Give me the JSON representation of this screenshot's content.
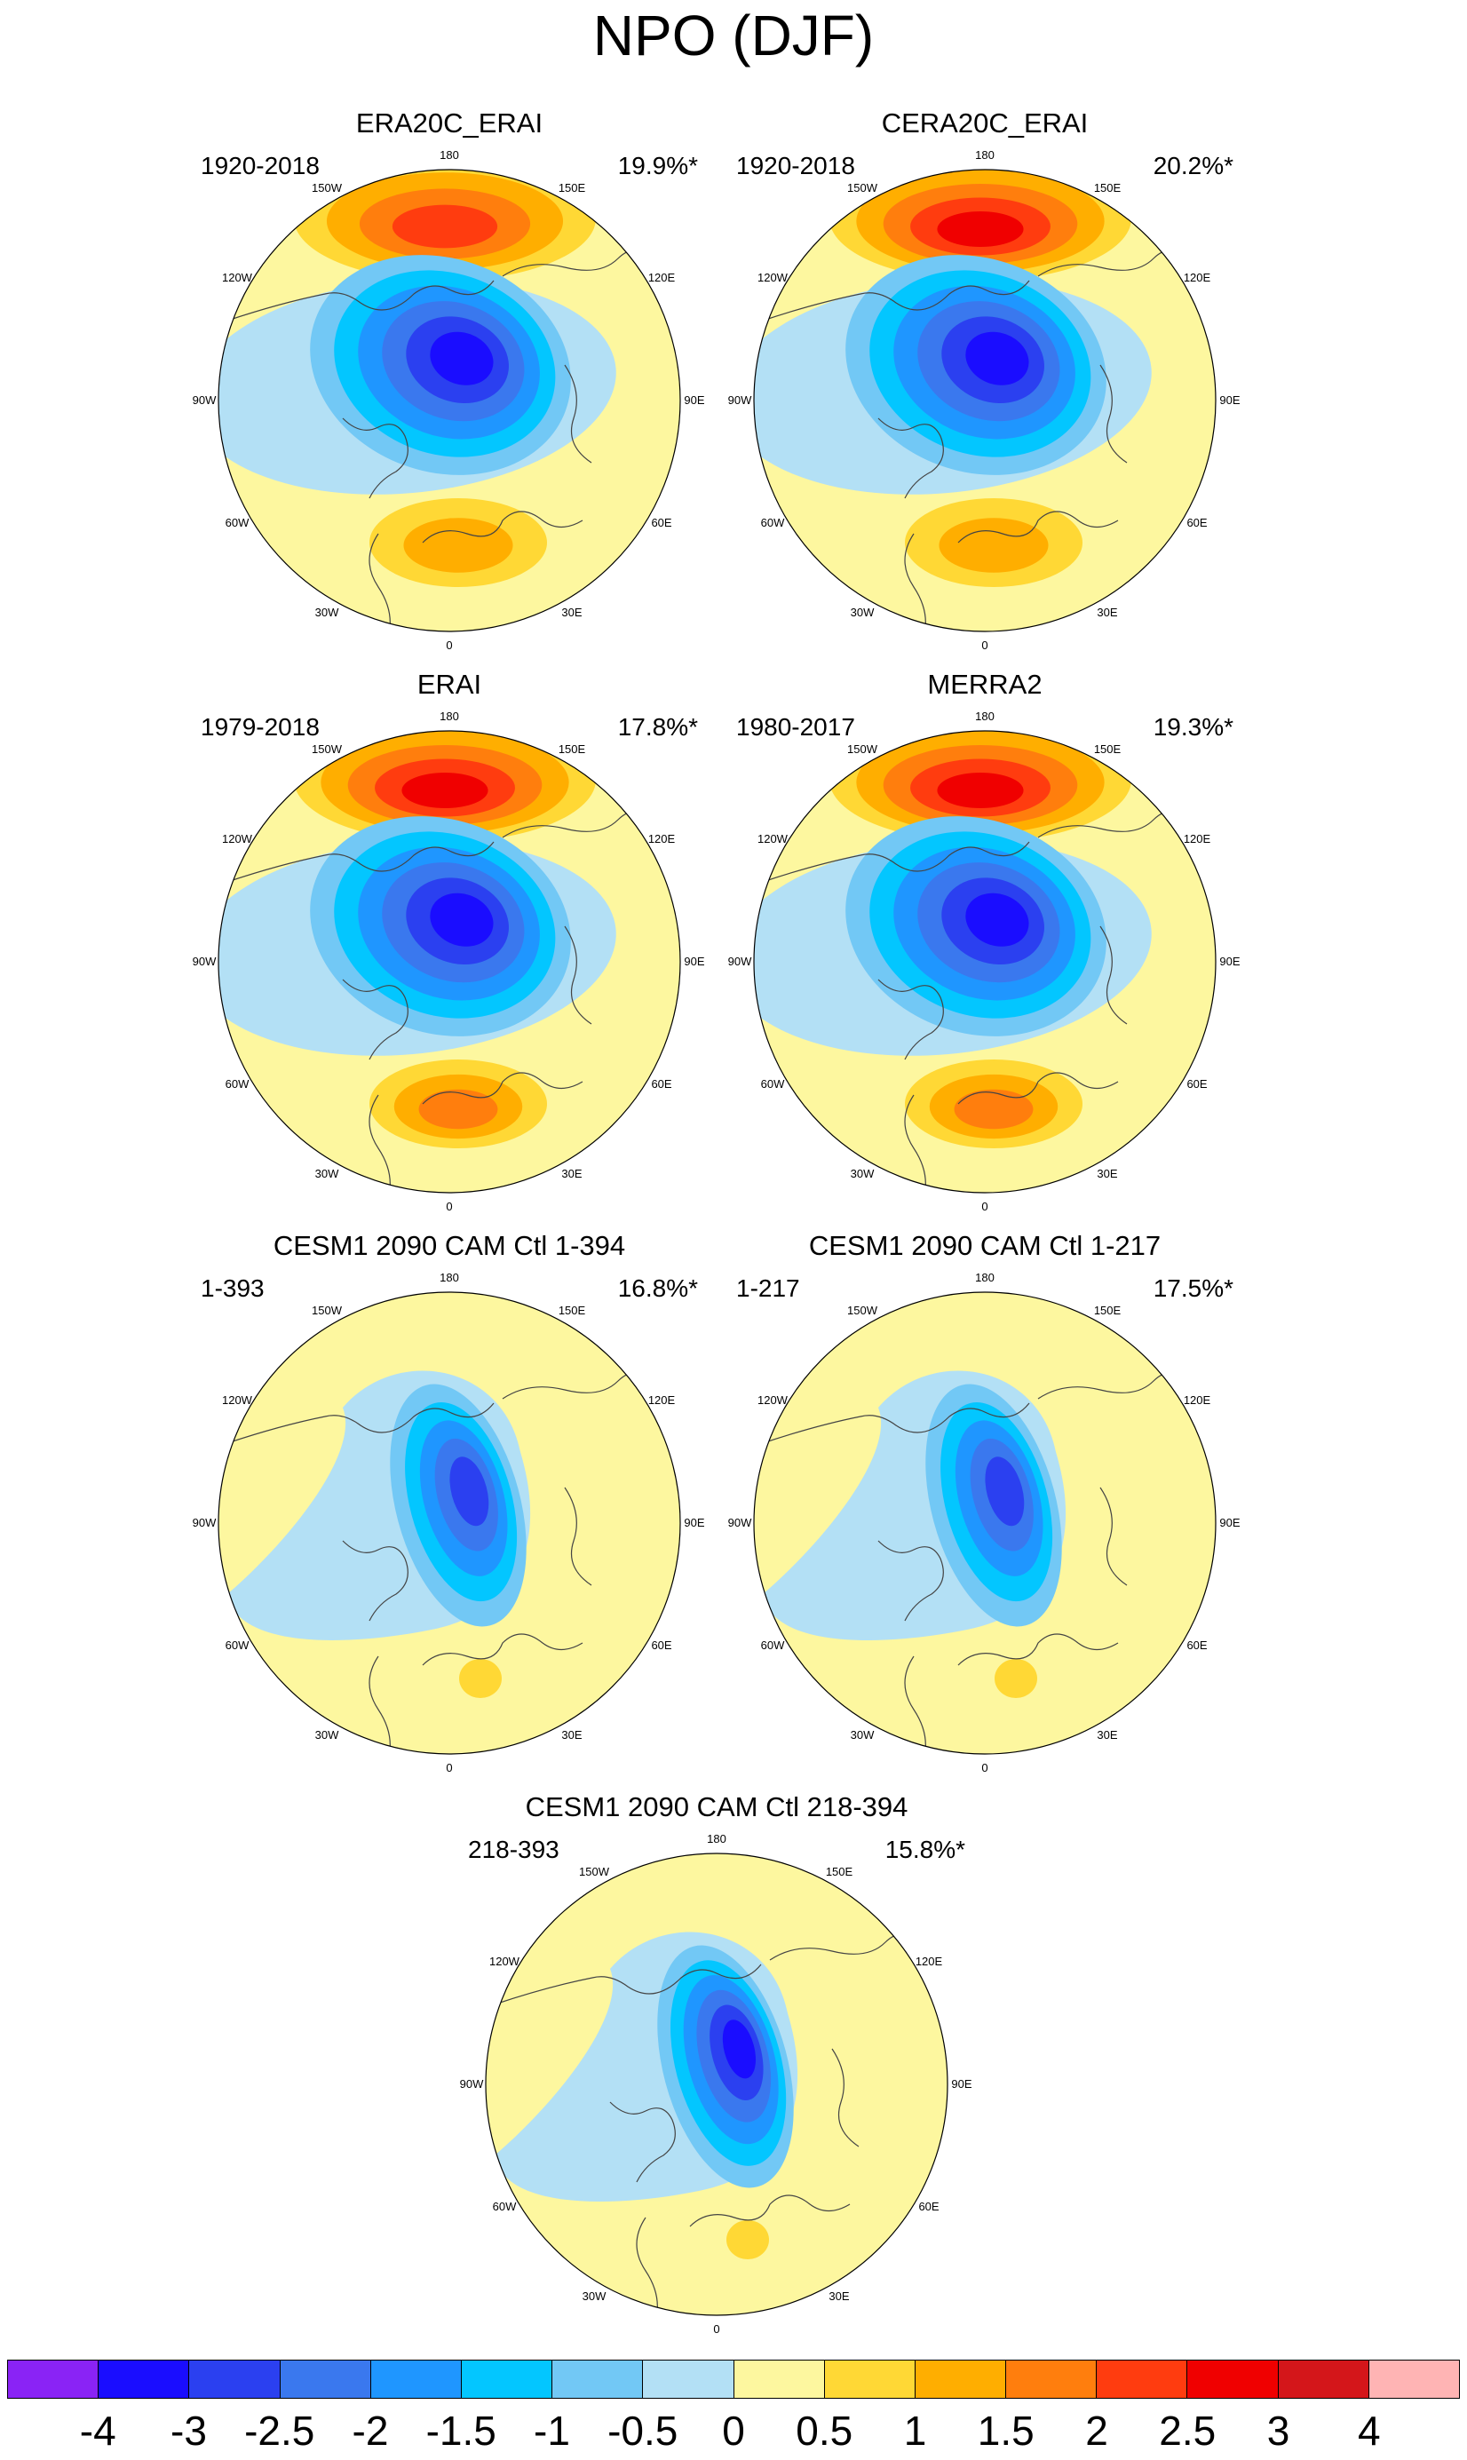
{
  "title": "NPO (DJF)",
  "panels": [
    {
      "title": "ERA20C_ERAI",
      "period": "1920-2018",
      "percent": "19.9%*",
      "style": "reanalysis",
      "pacific_peak": 2.3,
      "arctic_min": -3.2,
      "atlantic_peak": 1.4
    },
    {
      "title": "CERA20C_ERAI",
      "period": "1920-2018",
      "percent": "20.2%*",
      "style": "reanalysis",
      "pacific_peak": 2.6,
      "arctic_min": -3.1,
      "atlantic_peak": 1.3
    },
    {
      "title": "ERAI",
      "period": "1979-2018",
      "percent": "17.8%*",
      "style": "reanalysis",
      "pacific_peak": 2.7,
      "arctic_min": -3.3,
      "atlantic_peak": 1.7
    },
    {
      "title": "MERRA2",
      "period": "1980-2017",
      "percent": "19.3%*",
      "style": "reanalysis",
      "pacific_peak": 2.7,
      "arctic_min": -3.2,
      "atlantic_peak": 1.7
    },
    {
      "title": "CESM1 2090 CAM Ctl 1-394",
      "period": "1-393",
      "percent": "16.8%*",
      "style": "model",
      "pacific_peak": 0.6,
      "arctic_min": -2.9,
      "atlantic_peak": 0.7
    },
    {
      "title": "CESM1 2090 CAM Ctl 1-217",
      "period": "1-217",
      "percent": "17.5%*",
      "style": "model",
      "pacific_peak": 0.6,
      "arctic_min": -3.0,
      "atlantic_peak": 0.7
    },
    {
      "title": "CESM1 2090 CAM Ctl 218-394",
      "period": "218-393",
      "percent": "15.8%*",
      "style": "model",
      "pacific_peak": 0.6,
      "arctic_min": -3.1,
      "atlantic_peak": 0.6
    }
  ],
  "longitude_labels": [
    "180",
    "150E",
    "120E",
    "90E",
    "60E",
    "30E",
    "0",
    "30W",
    "60W",
    "90W",
    "120W",
    "150W"
  ],
  "colorbar": {
    "colors": [
      "#8a23f5",
      "#1a0dff",
      "#2b40f0",
      "#3a78ee",
      "#1f96ff",
      "#03c6ff",
      "#72c8f5",
      "#b3e0f5",
      "#fdf79f",
      "#ffd835",
      "#ffae00",
      "#ff7e0d",
      "#ff3c0f",
      "#f00000",
      "#d4161a",
      "#ffb4b4"
    ],
    "ticks": [
      "-4",
      "-3",
      "-2.5",
      "-2",
      "-1.5",
      "-1",
      "-0.5",
      "0",
      "0.5",
      "1",
      "1.5",
      "2",
      "2.5",
      "3",
      "4"
    ]
  }
}
